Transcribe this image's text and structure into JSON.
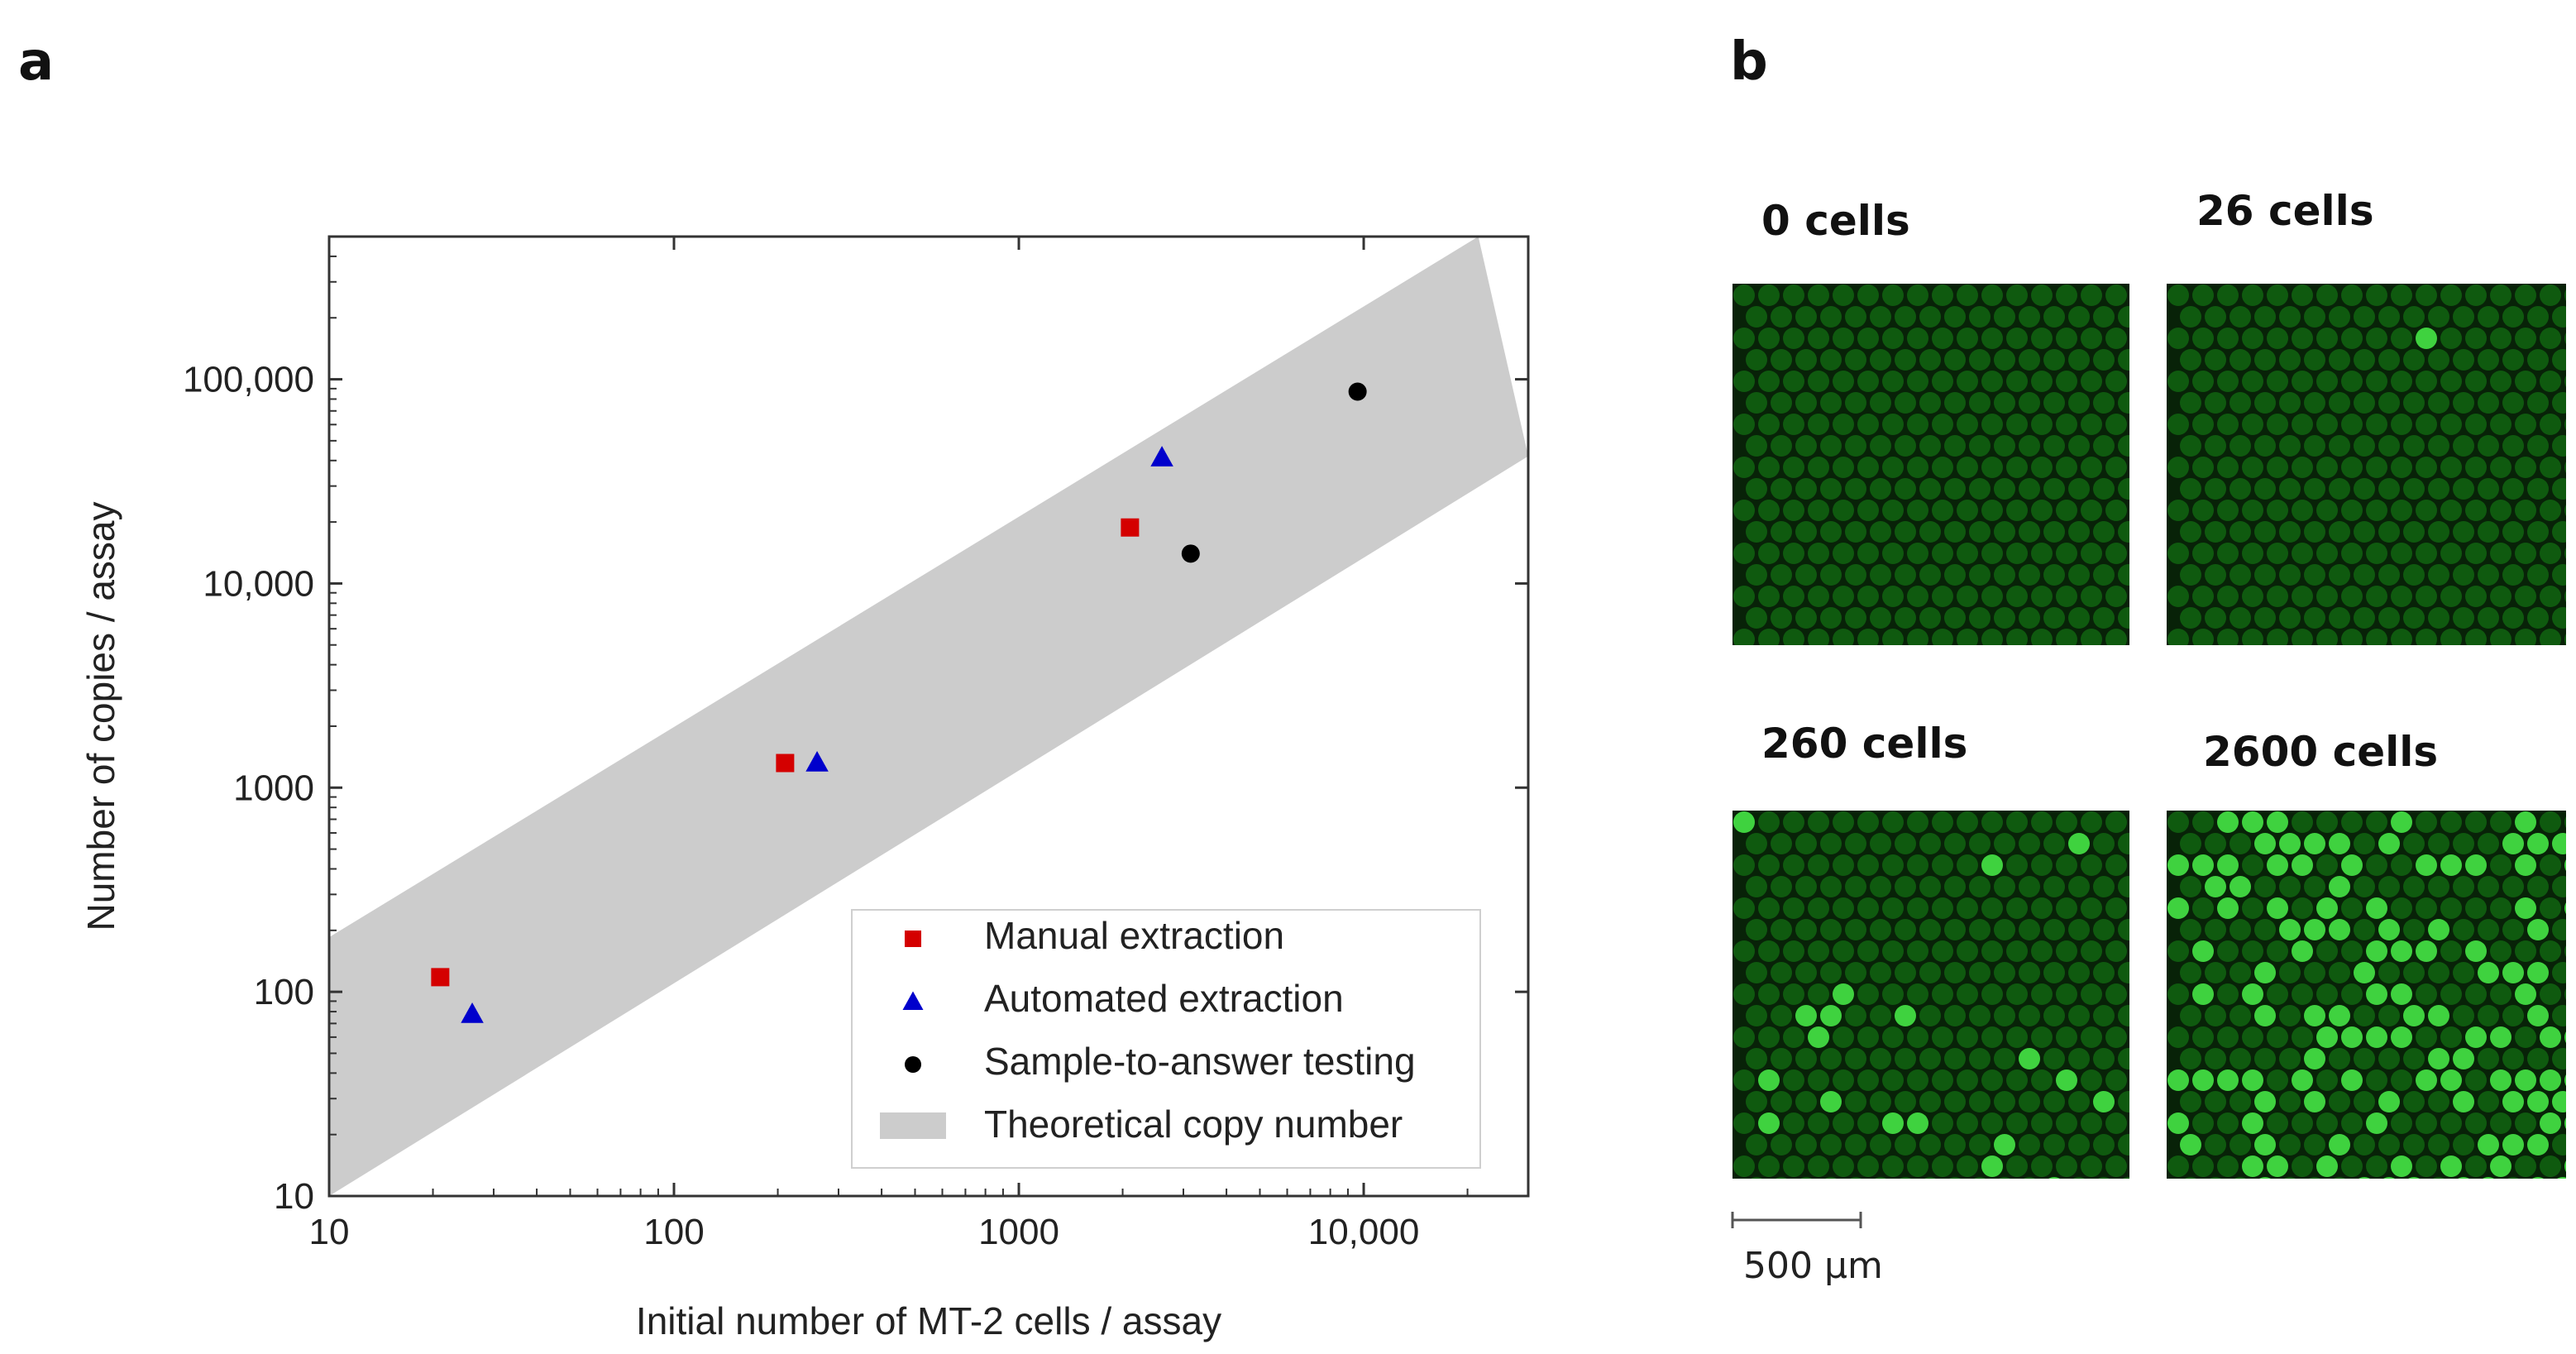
{
  "panels": {
    "a": "a",
    "b": "b"
  },
  "chart_data": {
    "type": "scatter",
    "xlabel": "Initial number of MT-2 cells / assay",
    "ylabel": "Number of copies / assay",
    "x_scale": "log",
    "y_scale": "log",
    "xlim": [
      10,
      30000
    ],
    "ylim": [
      10,
      500000
    ],
    "x_ticks": [
      {
        "value": 10,
        "label": "10"
      },
      {
        "value": 100,
        "label": "100"
      },
      {
        "value": 1000,
        "label": "1000"
      },
      {
        "value": 10000,
        "label": "10,000"
      }
    ],
    "y_ticks": [
      {
        "value": 10,
        "label": "10"
      },
      {
        "value": 100,
        "label": "100"
      },
      {
        "value": 1000,
        "label": "1000"
      },
      {
        "value": 10000,
        "label": "10,000"
      },
      {
        "value": 100000,
        "label": "100,000"
      }
    ],
    "grid": false,
    "legend_position": "bottom-right",
    "band": {
      "name": "Theoretical copy number",
      "color": "#cccccc",
      "upper": [
        [
          10,
          185
        ],
        [
          21500,
          500000
        ]
      ],
      "lower": [
        [
          10,
          10
        ],
        [
          30000,
          42000
        ]
      ]
    },
    "series": [
      {
        "name": "Manual extraction",
        "marker": "square",
        "color": "#d40000",
        "points": [
          [
            21,
            118
          ],
          [
            210,
            1320
          ],
          [
            2100,
            18800
          ]
        ]
      },
      {
        "name": "Automated extraction",
        "marker": "triangle",
        "color": "#0000cc",
        "points": [
          [
            26,
            78
          ],
          [
            260,
            1330
          ],
          [
            2600,
            41500
          ]
        ]
      },
      {
        "name": "Sample-to-answer testing",
        "marker": "circle",
        "color": "#000000",
        "points": [
          [
            3150,
            14000
          ],
          [
            9600,
            87000
          ]
        ]
      }
    ]
  },
  "images": [
    {
      "label": "0 cells",
      "bright_fraction": 0.0
    },
    {
      "label": "26 cells",
      "bright_fraction": 0.005
    },
    {
      "label": "260 cells",
      "bright_fraction": 0.05
    },
    {
      "label": "2600 cells",
      "bright_fraction": 0.42
    }
  ],
  "scale_bar": {
    "label": "500 μm"
  },
  "colors": {
    "droplet_dim": "#0f5a0f",
    "droplet_bright": "#3fd23f",
    "background": "#082208",
    "axis": "#333333"
  }
}
